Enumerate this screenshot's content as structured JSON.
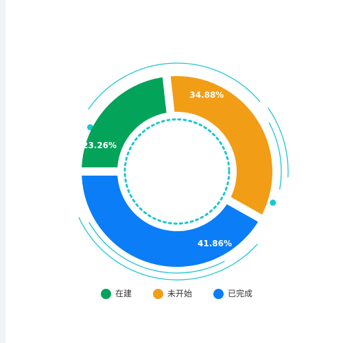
{
  "chart_data": {
    "type": "pie",
    "variant": "donut",
    "categories": [
      "在建",
      "未开始",
      "已完成"
    ],
    "values": [
      23.26,
      34.88,
      41.86
    ],
    "labels": [
      "23.26%",
      "34.88%",
      "41.86%"
    ],
    "colors": [
      "#04a35a",
      "#f29d16",
      "#0a7df7"
    ],
    "legend_position": "bottom",
    "title": "",
    "decoration_color": "#19c7d0"
  },
  "legend": {
    "items": [
      {
        "label": "在建",
        "color": "#04a35a"
      },
      {
        "label": "未开始",
        "color": "#f29d16"
      },
      {
        "label": "已完成",
        "color": "#0a7df7"
      }
    ]
  }
}
